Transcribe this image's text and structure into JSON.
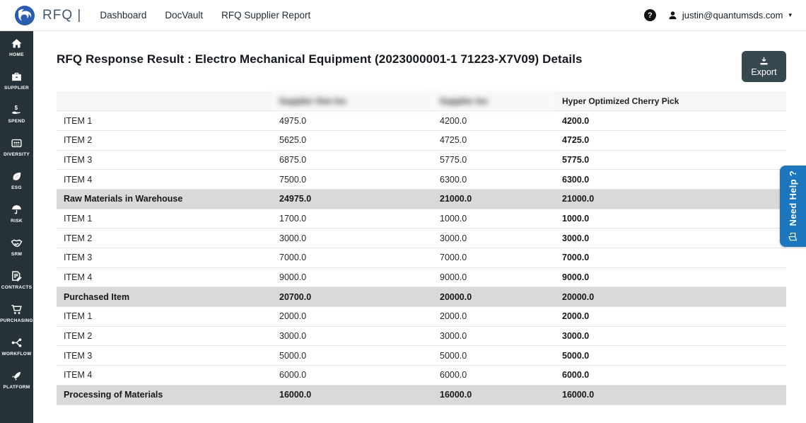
{
  "navbar": {
    "brand": "RFQ |",
    "links": [
      {
        "label": "Dashboard"
      },
      {
        "label": "DocVault"
      },
      {
        "label": "RFQ Supplier Report"
      }
    ],
    "help_symbol": "?",
    "user_email": "justin@quantumsds.com",
    "caret": "▾"
  },
  "sidebar": {
    "items": [
      {
        "label": "HOME"
      },
      {
        "label": "SUPPLIER"
      },
      {
        "label": "SPEND"
      },
      {
        "label": "DIVERSITY"
      },
      {
        "label": "ESG"
      },
      {
        "label": "RISK"
      },
      {
        "label": "SRM"
      },
      {
        "label": "CONTRACTS"
      },
      {
        "label": "PURCHASING"
      },
      {
        "label": "WORKFLOW"
      },
      {
        "label": "PLATFORM"
      }
    ]
  },
  "main": {
    "title": "RFQ Response Result : Electro Mechanical Equipment (2023000001-1 71223-X7V09) Details",
    "export_label": "Export"
  },
  "help_tab": {
    "label": "Need Help ?"
  },
  "table": {
    "columns": [
      {
        "label": "",
        "redacted": false
      },
      {
        "label": "Supplier One Inc",
        "redacted": true
      },
      {
        "label": "Supplier Inc",
        "redacted": true
      },
      {
        "label": "Hyper Optimized Cherry Pick",
        "redacted": false
      }
    ],
    "groups": [
      {
        "rows": [
          {
            "label": "ITEM 1",
            "values": [
              "4975.0",
              "4200.0",
              "4200.0"
            ]
          },
          {
            "label": "ITEM 2",
            "values": [
              "5625.0",
              "4725.0",
              "4725.0"
            ]
          },
          {
            "label": "ITEM 3",
            "values": [
              "6875.0",
              "5775.0",
              "5775.0"
            ]
          },
          {
            "label": "ITEM 4",
            "values": [
              "7500.0",
              "6300.0",
              "6300.0"
            ]
          }
        ],
        "summary": {
          "label": "Raw Materials in Warehouse",
          "values": [
            "24975.0",
            "21000.0",
            "21000.0"
          ]
        }
      },
      {
        "rows": [
          {
            "label": "ITEM 1",
            "values": [
              "1700.0",
              "1000.0",
              "1000.0"
            ]
          },
          {
            "label": "ITEM 2",
            "values": [
              "3000.0",
              "3000.0",
              "3000.0"
            ]
          },
          {
            "label": "ITEM 3",
            "values": [
              "7000.0",
              "7000.0",
              "7000.0"
            ]
          },
          {
            "label": "ITEM 4",
            "values": [
              "9000.0",
              "9000.0",
              "9000.0"
            ]
          }
        ],
        "summary": {
          "label": "Purchased Item",
          "values": [
            "20700.0",
            "20000.0",
            "20000.0"
          ]
        }
      },
      {
        "rows": [
          {
            "label": "ITEM 1",
            "values": [
              "2000.0",
              "2000.0",
              "2000.0"
            ]
          },
          {
            "label": "ITEM 2",
            "values": [
              "3000.0",
              "3000.0",
              "3000.0"
            ]
          },
          {
            "label": "ITEM 3",
            "values": [
              "5000.0",
              "5000.0",
              "5000.0"
            ]
          },
          {
            "label": "ITEM 4",
            "values": [
              "6000.0",
              "6000.0",
              "6000.0"
            ]
          }
        ],
        "summary": {
          "label": "Processing of Materials",
          "values": [
            "16000.0",
            "16000.0",
            "16000.0"
          ]
        }
      }
    ]
  },
  "colors": {
    "sidebar_bg": "#263238",
    "export_button_bg": "#37474f",
    "summary_row_bg": "#d9d9d9",
    "help_tab_blue": "#1b76bd",
    "logo_blue": "#2a5db0",
    "header_row_bg": "#f7f7f7"
  }
}
